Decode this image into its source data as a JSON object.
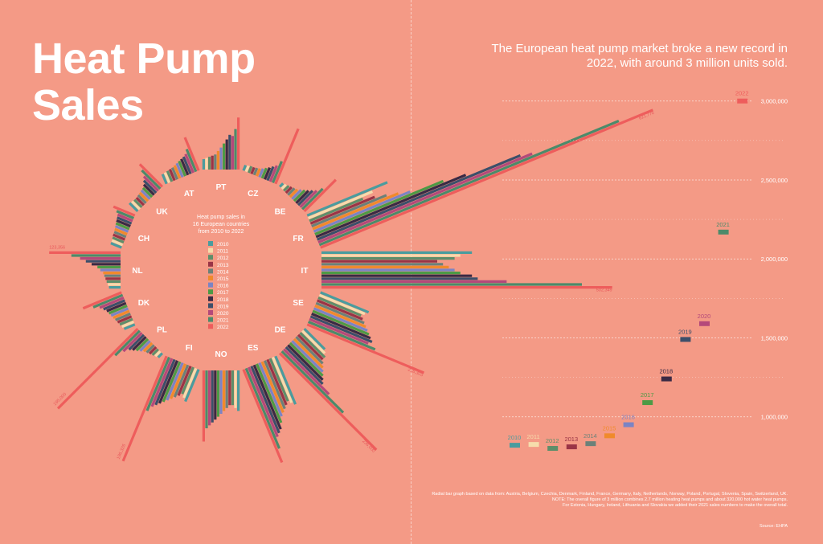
{
  "title": "Heat Pump Sales",
  "headline": "The European heat pump market broke a new record in 2022, with around 3 million units sold.",
  "radial": {
    "center_title": "Heat pump sales in 16 European countries from 2010 to 2022",
    "years": [
      "2010",
      "2011",
      "2012",
      "2013",
      "2014",
      "2015",
      "2016",
      "2017",
      "2018",
      "2019",
      "2020",
      "2021",
      "2022"
    ],
    "colors": [
      "#4a9c9e",
      "#f6dcac",
      "#5e8e6a",
      "#9a3446",
      "#6b8179",
      "#f08a2c",
      "#7b84c4",
      "#4d9a45",
      "#3a2a45",
      "#3c4f6a",
      "#b4497a",
      "#4c8a6a",
      "#ee5d5c"
    ],
    "countries": [
      {
        "code": "PT",
        "values": [
          18000,
          20000,
          22000,
          24000,
          26000,
          32000,
          38000,
          45000,
          52000,
          60000,
          58000,
          70000,
          90000
        ]
      },
      {
        "code": "CZ",
        "values": [
          10000,
          11000,
          12000,
          12000,
          13000,
          14000,
          16000,
          19000,
          22000,
          26000,
          30000,
          40000,
          103000
        ]
      },
      {
        "code": "BE",
        "values": [
          8000,
          10000,
          12000,
          14000,
          16000,
          18000,
          22000,
          26000,
          30000,
          35000,
          40000,
          50000,
          77000
        ]
      },
      {
        "code": "FR",
        "values": [
          150000,
          120000,
          100000,
          120000,
          140000,
          160000,
          180000,
          240000,
          280000,
          380000,
          400000,
          560000,
          621776
        ]
      },
      {
        "code": "IT",
        "values": [
          260000,
          240000,
          230000,
          200000,
          210000,
          220000,
          230000,
          240000,
          260000,
          270000,
          320000,
          450000,
          502349
        ]
      },
      {
        "code": "SE",
        "values": [
          90000,
          85000,
          80000,
          85000,
          90000,
          95000,
          100000,
          105000,
          110000,
          115000,
          110000,
          125000,
          218303
        ]
      },
      {
        "code": "DE",
        "values": [
          50000,
          55000,
          60000,
          60000,
          65000,
          70000,
          75000,
          80000,
          85000,
          90000,
          110000,
          150000,
          236000
        ]
      },
      {
        "code": "ES",
        "values": [
          90000,
          85000,
          80000,
          85000,
          90000,
          95000,
          100000,
          110000,
          120000,
          125000,
          130000,
          150000,
          174000
        ]
      },
      {
        "code": "NO",
        "values": [
          70000,
          65000,
          60000,
          60000,
          65000,
          70000,
          75000,
          80000,
          85000,
          90000,
          95000,
          100000,
          123000
        ]
      },
      {
        "code": "FI",
        "values": [
          60000,
          55000,
          50000,
          55000,
          60000,
          65000,
          70000,
          75000,
          80000,
          85000,
          90000,
          100000,
          196326
        ]
      },
      {
        "code": "PL",
        "values": [
          10000,
          12000,
          14000,
          16000,
          18000,
          20000,
          24000,
          28000,
          32000,
          36000,
          45000,
          60000,
          195000
        ]
      },
      {
        "code": "DK",
        "values": [
          20000,
          22000,
          24000,
          26000,
          28000,
          30000,
          32000,
          34000,
          36000,
          40000,
          45000,
          55000,
          72000
        ]
      },
      {
        "code": "NL",
        "values": [
          20000,
          22000,
          24000,
          26000,
          28000,
          30000,
          35000,
          40000,
          50000,
          60000,
          70000,
          85000,
          123356
        ]
      },
      {
        "code": "CH",
        "values": [
          20000,
          20000,
          21000,
          22000,
          22000,
          23000,
          24000,
          25000,
          26000,
          27000,
          28000,
          32000,
          40000
        ]
      },
      {
        "code": "UK",
        "values": [
          20000,
          19000,
          18000,
          18000,
          19000,
          20000,
          21000,
          22000,
          25000,
          30000,
          35000,
          45000,
          55000
        ]
      },
      {
        "code": "AT",
        "values": [
          18000,
          19000,
          20000,
          21000,
          22000,
          24000,
          26000,
          28000,
          30000,
          32000,
          35000,
          42000,
          62000
        ]
      }
    ],
    "value_labels": [
      {
        "country": "FR",
        "text": "621,776"
      },
      {
        "country": "IT",
        "text": "502,349"
      },
      {
        "country": "SE",
        "text": "218,303"
      },
      {
        "country": "DE",
        "text": "236,000"
      },
      {
        "country": "FI",
        "text": "196,326"
      },
      {
        "country": "PL",
        "text": "195,000"
      },
      {
        "country": "NL",
        "text": "123,356"
      }
    ]
  },
  "chart_data": {
    "type": "scatter",
    "title": "",
    "categories": [
      "2010",
      "2011",
      "2012",
      "2013",
      "2014",
      "2015",
      "2016",
      "2017",
      "2018",
      "2019",
      "2020",
      "2021",
      "2022"
    ],
    "values": [
      820000,
      825000,
      800000,
      810000,
      830000,
      880000,
      950000,
      1090000,
      1240000,
      1490000,
      1590000,
      2170000,
      3000000
    ],
    "colors": [
      "#4a9c9e",
      "#f6dcac",
      "#5e8e6a",
      "#9a3446",
      "#6b8179",
      "#f08a2c",
      "#7b84c4",
      "#4d9a45",
      "#3a2a45",
      "#3c4f6a",
      "#b4497a",
      "#4c8a6a",
      "#ee5d5c"
    ],
    "yticks": [
      1000000,
      1500000,
      2000000,
      2500000,
      3000000
    ],
    "ytick_labels": [
      "1,000,000",
      "1,500,000",
      "2,000,000",
      "2,500,000",
      "3,000,000"
    ],
    "ylim": [
      790000,
      3080000
    ],
    "grid": true
  },
  "footnote": {
    "lines": [
      "Radial bar graph based on data from: Austria, Belgium, Czechia, Denmark, Finland, France, Germany, Italy, Netherlands, Norway, Poland, Portugal, Slovenia, Spain, Switzerland, UK.",
      "NOTE: The overall figure of 3 million combines 2.7 million heating heat pumps and about 320,000 hot water heat pumps.",
      "For Estonia, Hungary, Ireland, Lithuania and Slovakia we added their 2021 sales numbers to make the overall total."
    ],
    "source": "Source: EHPA"
  }
}
